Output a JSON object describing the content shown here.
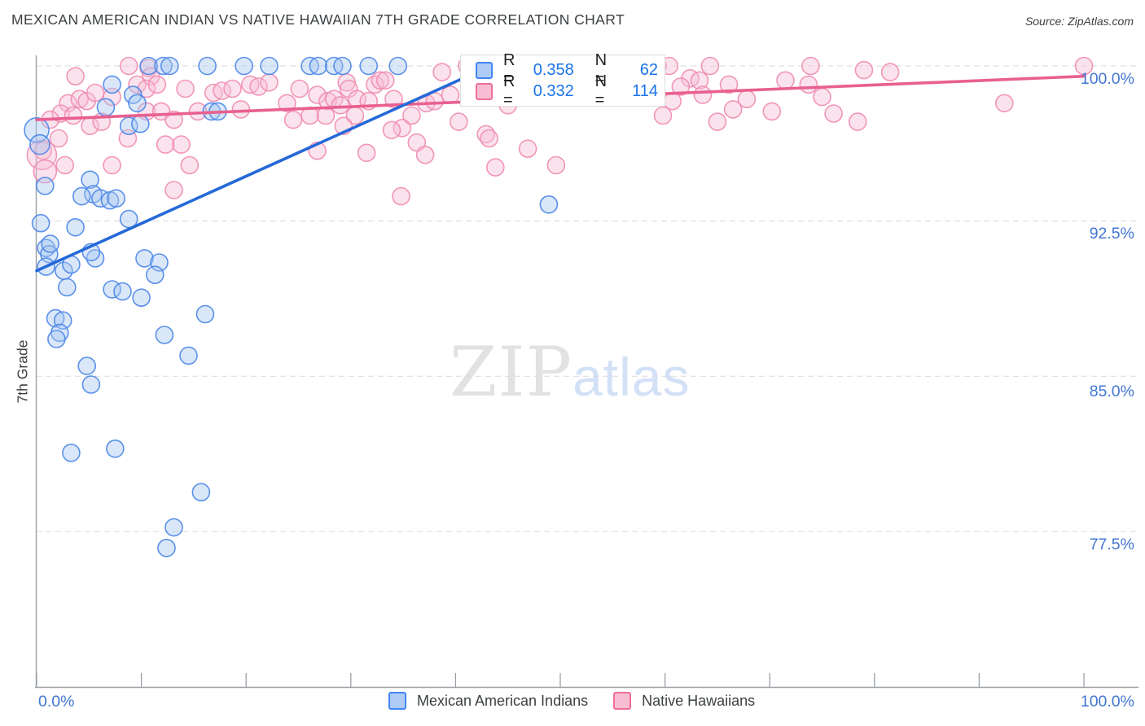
{
  "header": {
    "title": "MEXICAN AMERICAN INDIAN VS NATIVE HAWAIIAN 7TH GRADE CORRELATION CHART",
    "source": "Source: ZipAtlas.com"
  },
  "axes": {
    "y_label": "7th Grade",
    "y_ticks": [
      "100.0%",
      "92.5%",
      "85.0%",
      "77.5%"
    ],
    "x_tick_left": "0.0%",
    "x_tick_right": "100.0%"
  },
  "legend_box": {
    "r_label": "R =",
    "n_label": "N ="
  },
  "watermark": {
    "zip": "ZIP",
    "atlas": "atlas"
  },
  "theme": {
    "grid_color": "#d9d9d9",
    "axis_color": "#9aa0a6",
    "tick_label_color": "#4176d1",
    "value_color": "#1a73e8",
    "title_color": "#3c4043"
  },
  "chart_data": {
    "type": "scatter",
    "title": "Mexican American Indian vs Native Hawaiian 7th Grade",
    "ylabel": "7th Grade",
    "x_range": [
      0,
      100
    ],
    "y_grid_percent": [
      100,
      92.5,
      85,
      77.5
    ],
    "x_tick_step_percent": 10,
    "legend_position": "bottom-center",
    "grid": "dashed-horizontal",
    "series": [
      {
        "id": "blue",
        "name": "Mexican American Indians",
        "R": "0.358",
        "N": "62",
        "stroke": "#4a86e8",
        "fill": "#a8c6f0",
        "points": [
          [
            10.7,
            100
          ],
          [
            12.1,
            100
          ],
          [
            12.7,
            100
          ],
          [
            16.3,
            100
          ],
          [
            19.8,
            100
          ],
          [
            22.2,
            100
          ],
          [
            26.1,
            100
          ],
          [
            26.9,
            100
          ],
          [
            28.4,
            100
          ],
          [
            29.2,
            100
          ],
          [
            31.7,
            100
          ],
          [
            34.5,
            100
          ],
          [
            7.2,
            99.1
          ],
          [
            6.6,
            98.0
          ],
          [
            9.2,
            98.6
          ],
          [
            9.6,
            98.2
          ],
          [
            8.8,
            97.1
          ],
          [
            9.9,
            97.2
          ],
          [
            16.7,
            97.8
          ],
          [
            17.3,
            97.8
          ],
          [
            0,
            96.9,
            15
          ],
          [
            0.3,
            96.2,
            12
          ],
          [
            0.8,
            94.2
          ],
          [
            5.1,
            94.5
          ],
          [
            5.4,
            93.8
          ],
          [
            4.3,
            93.7
          ],
          [
            6.1,
            93.6
          ],
          [
            7.0,
            93.5
          ],
          [
            7.6,
            93.6
          ],
          [
            0.4,
            92.4
          ],
          [
            3.7,
            92.2
          ],
          [
            8.8,
            92.6
          ],
          [
            0.9,
            91.2
          ],
          [
            1.2,
            90.9
          ],
          [
            5.6,
            90.7
          ],
          [
            1.3,
            91.4
          ],
          [
            0.9,
            90.3
          ],
          [
            2.6,
            90.1
          ],
          [
            3.3,
            90.4
          ],
          [
            5.2,
            91.0
          ],
          [
            2.9,
            89.3
          ],
          [
            7.2,
            89.2
          ],
          [
            8.2,
            89.1
          ],
          [
            10.0,
            88.8
          ],
          [
            10.3,
            90.7
          ],
          [
            11.7,
            90.5
          ],
          [
            11.3,
            89.9
          ],
          [
            1.8,
            87.8
          ],
          [
            2.5,
            87.7
          ],
          [
            2.2,
            87.1
          ],
          [
            1.9,
            86.8
          ],
          [
            12.2,
            87.0
          ],
          [
            16.1,
            88.0
          ],
          [
            14.5,
            86.0
          ],
          [
            4.8,
            85.5
          ],
          [
            5.2,
            84.6
          ],
          [
            3.3,
            81.3
          ],
          [
            7.5,
            81.5
          ],
          [
            15.7,
            79.4
          ],
          [
            13.1,
            77.7
          ],
          [
            12.4,
            76.7
          ],
          [
            48.9,
            93.3
          ]
        ]
      },
      {
        "id": "pink",
        "name": "Native Hawaiians",
        "R": "0.332",
        "N": "114",
        "stroke": "#f08cb0",
        "fill": "#f6bcd3",
        "points": [
          [
            3.7,
            99.5
          ],
          [
            8.8,
            100
          ],
          [
            10.7,
            99.9
          ],
          [
            10.9,
            99.5
          ],
          [
            3.0,
            98.2
          ],
          [
            4.1,
            98.4
          ],
          [
            4.8,
            98.3
          ],
          [
            5.6,
            98.7
          ],
          [
            7.2,
            98.5
          ],
          [
            2.3,
            97.7
          ],
          [
            1.3,
            97.4
          ],
          [
            3.5,
            97.6
          ],
          [
            5.1,
            97.1
          ],
          [
            6.2,
            97.3
          ],
          [
            9.6,
            99.1
          ],
          [
            10.5,
            98.9
          ],
          [
            11.5,
            99.1
          ],
          [
            10.5,
            97.8
          ],
          [
            11.9,
            97.8
          ],
          [
            13.1,
            97.4
          ],
          [
            8.7,
            96.5
          ],
          [
            2.1,
            96.5
          ],
          [
            0.6,
            95.9
          ],
          [
            2.7,
            95.2
          ],
          [
            7.2,
            95.2
          ],
          [
            14.2,
            98.9
          ],
          [
            15.4,
            97.8
          ],
          [
            16.9,
            98.7
          ],
          [
            17.7,
            98.8
          ],
          [
            18.7,
            98.9
          ],
          [
            20.4,
            99.1
          ],
          [
            21.2,
            99.0
          ],
          [
            22.2,
            99.2
          ],
          [
            23.9,
            98.2
          ],
          [
            25.1,
            98.9
          ],
          [
            26.1,
            97.6
          ],
          [
            12.3,
            96.2
          ],
          [
            13.8,
            96.2
          ],
          [
            14.6,
            95.2
          ],
          [
            13.1,
            94.0
          ],
          [
            0.5,
            95.7,
            18
          ],
          [
            0.8,
            94.9,
            14
          ],
          [
            29.6,
            99.2
          ],
          [
            32.3,
            99.1
          ],
          [
            32.8,
            99.3
          ],
          [
            33.3,
            99.3
          ],
          [
            38.7,
            99.7
          ],
          [
            41.1,
            100
          ],
          [
            44.5,
            100
          ],
          [
            46.1,
            100
          ],
          [
            47.9,
            100
          ],
          [
            52.3,
            99.1
          ],
          [
            26.8,
            98.6
          ],
          [
            27.8,
            98.3
          ],
          [
            28.4,
            98.4
          ],
          [
            29.0,
            98.1
          ],
          [
            27.6,
            97.6
          ],
          [
            29.8,
            98.9
          ],
          [
            30.6,
            98.4
          ],
          [
            30.4,
            97.6
          ],
          [
            31.7,
            98.3
          ],
          [
            34.1,
            98.4
          ],
          [
            34.9,
            97.0
          ],
          [
            33.9,
            96.9
          ],
          [
            35.8,
            97.6
          ],
          [
            37.2,
            98.2
          ],
          [
            38.0,
            98.3
          ],
          [
            40.3,
            97.3
          ],
          [
            42.9,
            96.7
          ],
          [
            43.2,
            96.5
          ],
          [
            45.0,
            98.1
          ],
          [
            29.3,
            97.1
          ],
          [
            31.5,
            95.8
          ],
          [
            36.3,
            96.3
          ],
          [
            37.1,
            95.7
          ],
          [
            43.8,
            95.1
          ],
          [
            46.9,
            96.0
          ],
          [
            49.6,
            95.2
          ],
          [
            34.8,
            93.7
          ],
          [
            26.8,
            95.9
          ],
          [
            54.9,
            100
          ],
          [
            59.3,
            100
          ],
          [
            60.4,
            100
          ],
          [
            62.4,
            99.4
          ],
          [
            63.3,
            99.3
          ],
          [
            64.3,
            100
          ],
          [
            63.6,
            98.6
          ],
          [
            66.1,
            99.1
          ],
          [
            60.7,
            98.3
          ],
          [
            59.8,
            97.6
          ],
          [
            65.0,
            97.3
          ],
          [
            67.8,
            98.4
          ],
          [
            70.2,
            97.8
          ],
          [
            73.7,
            99.1
          ],
          [
            73.9,
            100
          ],
          [
            76.1,
            97.7
          ],
          [
            78.4,
            97.3
          ],
          [
            79.0,
            99.8
          ],
          [
            100,
            100
          ],
          [
            92.4,
            98.2
          ],
          [
            81.5,
            99.7
          ],
          [
            43.0,
            100
          ],
          [
            48.5,
            100
          ],
          [
            50.5,
            100
          ],
          [
            56.5,
            100
          ],
          [
            58.0,
            100
          ],
          [
            19.5,
            97.9
          ],
          [
            24.5,
            97.4
          ],
          [
            39.5,
            98.6
          ],
          [
            51.0,
            98.8
          ],
          [
            61.5,
            99.0
          ],
          [
            66.5,
            97.9
          ],
          [
            71.5,
            99.3
          ],
          [
            75.0,
            98.5
          ]
        ]
      }
    ],
    "trendlines": [
      {
        "id": "pink",
        "color": "#e8608f",
        "from": [
          0,
          97.4
        ],
        "to": [
          100,
          99.5
        ]
      },
      {
        "id": "blue",
        "color": "#2569d8",
        "from": [
          0,
          90.1
        ],
        "to": [
          42.9,
          99.9
        ]
      }
    ]
  }
}
